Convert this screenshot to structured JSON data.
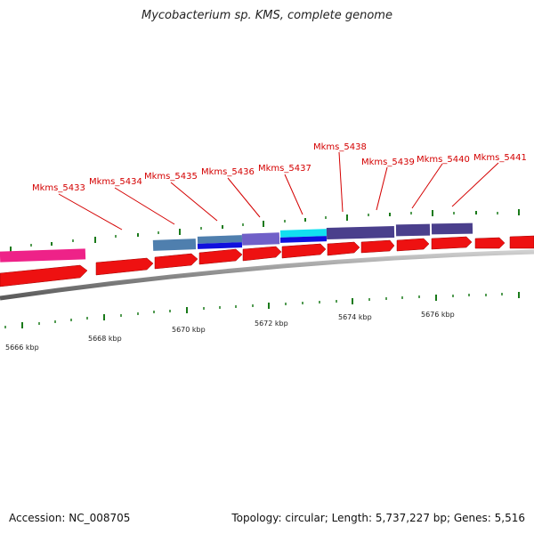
{
  "title": "Mycobacterium sp. KMS, complete genome",
  "footer": {
    "accession": "Accession: NC_008705",
    "summary": "Topology: circular; Length: 5,737,227 bp; Genes: 5,516"
  },
  "colors": {
    "forward_cds": "#ee1111",
    "label": "#d40000",
    "tick": "#1a7a1a",
    "backbone": "#8a8a8a",
    "pink": "#ee2288",
    "steelblue": "#4f7fae",
    "blue": "#1010dd",
    "slate": "#7060c8",
    "cyan": "#12e0f0",
    "indigo": "#4a3f8c"
  },
  "gene_labels": [
    "Mkms_5433",
    "Mkms_5434",
    "Mkms_5435",
    "Mkms_5436",
    "Mkms_5437",
    "Mkms_5438",
    "Mkms_5439",
    "Mkms_5440",
    "Mkms_5441"
  ],
  "scale_labels": [
    "5666 kbp",
    "5668 kbp",
    "5670 kbp",
    "5672 kbp",
    "5674 kbp",
    "5676 kbp"
  ]
}
